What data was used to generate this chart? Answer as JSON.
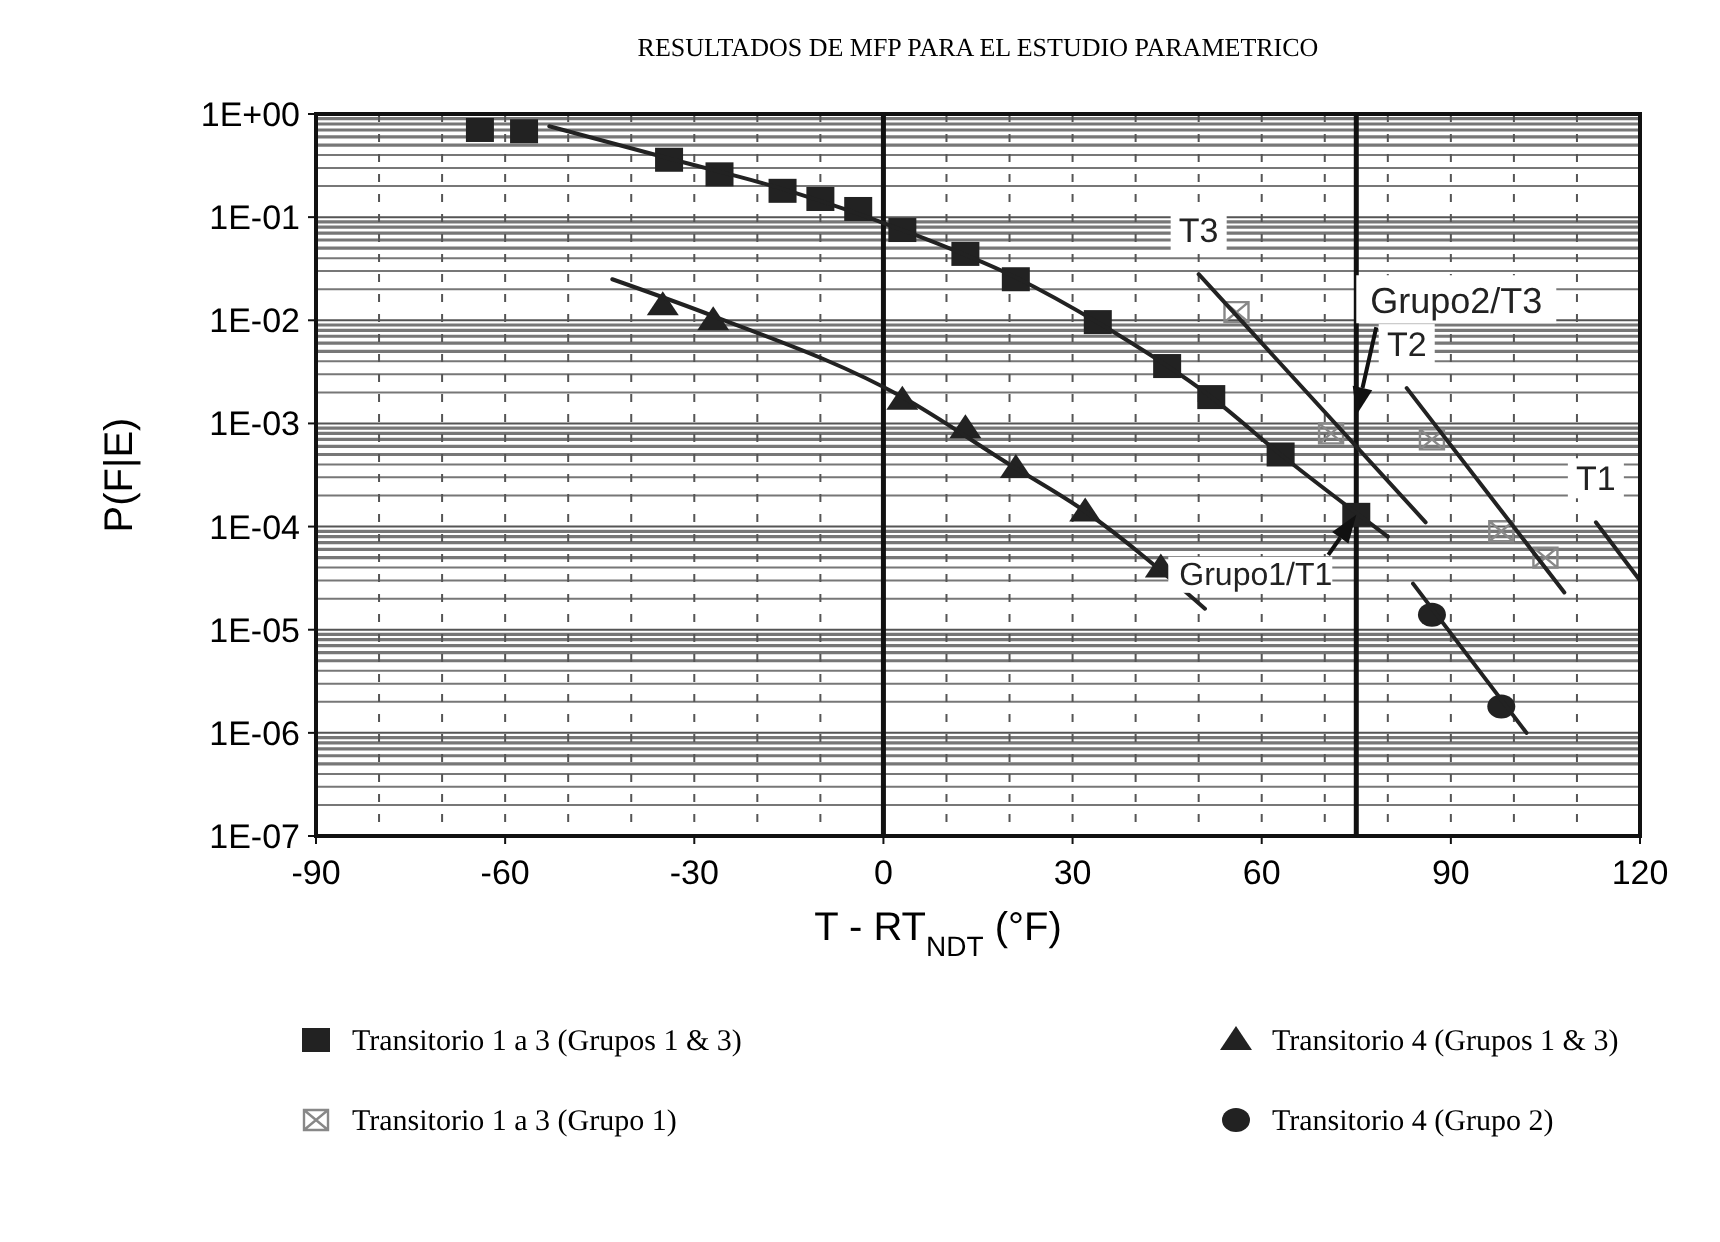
{
  "chart_data": {
    "type": "scatter",
    "title": "RESULTADOS DE MFP PARA EL ESTUDIO PARAMETRICO",
    "xlabel": "T - RT$_{NDT}$(°F)",
    "ylabel": "P(F|E)",
    "log": true,
    "grid": true,
    "legend": "bottom",
    "xlim": [
      -90,
      120
    ],
    "xticks": [
      -90,
      -60,
      -30,
      0,
      30,
      60,
      90,
      120
    ],
    "ylim": [
      1e-07,
      1
    ],
    "yticks": [
      {
        "value": 1,
        "label": "1E+00"
      },
      {
        "value": 0.1,
        "label": "1E-01"
      },
      {
        "value": 0.01,
        "label": "1E-02"
      },
      {
        "value": 0.001,
        "label": "1E-03"
      },
      {
        "value": 0.0001,
        "label": "1E-04"
      },
      {
        "value": 1e-05,
        "label": "1E-05"
      },
      {
        "value": 1e-06,
        "label": "1E-06"
      },
      {
        "value": 1e-07,
        "label": "1E-07"
      }
    ],
    "series": [
      {
        "name": "Transitorio 1 a 3 (Grupos 1 & 3)",
        "type": "scatter",
        "marker": "square",
        "color": "#222222",
        "x": [
          -64,
          -57,
          -34,
          -26,
          -16,
          -10,
          -4,
          3,
          13,
          21,
          34,
          45,
          52,
          63,
          75
        ],
        "values": [
          0.7,
          0.68,
          0.36,
          0.26,
          0.18,
          0.15,
          0.12,
          0.075,
          0.044,
          0.025,
          0.0096,
          0.0036,
          0.0018,
          0.0005,
          0.00013
        ]
      },
      {
        "name": "Transitorio 4 (Grupos 1 & 3)",
        "type": "scatter",
        "marker": "triangle",
        "color": "#222222",
        "x": [
          -35,
          -27,
          3,
          13,
          21,
          32,
          44
        ],
        "values": [
          0.014,
          0.01,
          0.0017,
          0.0009,
          0.00037,
          0.00014,
          4e-05
        ]
      },
      {
        "name": "Transitorio 1 a 3 (Grupo 1)",
        "type": "scatter",
        "marker": "cross",
        "color": "#888888",
        "x": [
          56,
          71,
          87,
          98,
          105
        ],
        "values": [
          0.012,
          0.0008,
          0.0007,
          9e-05,
          5e-05
        ]
      },
      {
        "name": "Transitorio 4 (Grupo 2)",
        "type": "scatter",
        "marker": "circle",
        "color": "#222222",
        "x": [
          87,
          98
        ],
        "values": [
          1.4e-05,
          1.8e-06
        ]
      },
      {
        "type": "line",
        "marker": "none",
        "color": "#222222",
        "x": [
          -53,
          -34,
          -15,
          3,
          21,
          34,
          52,
          63,
          80
        ],
        "values": [
          0.76,
          0.37,
          0.18,
          0.075,
          0.026,
          0.0095,
          0.0018,
          0.0005,
          8e-05
        ]
      },
      {
        "type": "line",
        "marker": "none",
        "color": "#222222",
        "x": [
          -43,
          -27,
          3,
          20,
          32,
          51
        ],
        "values": [
          0.025,
          0.011,
          0.0018,
          0.0004,
          0.00014,
          1.6e-05
        ]
      },
      {
        "type": "line",
        "marker": "none",
        "color": "#222222",
        "x": [
          84,
          102
        ],
        "values": [
          2.8e-05,
          1e-06
        ]
      },
      {
        "name": "T3",
        "type": "line",
        "marker": "none",
        "color": "#222222",
        "x": [
          50,
          86
        ],
        "values": [
          0.028,
          0.00011
        ]
      },
      {
        "name": "T2",
        "type": "line",
        "marker": "none",
        "color": "#222222",
        "x": [
          83,
          108
        ],
        "values": [
          0.0022,
          2.3e-05
        ]
      },
      {
        "name": "T1",
        "type": "line",
        "marker": "none",
        "color": "#222222",
        "x": [
          113,
          120
        ],
        "values": [
          0.00011,
          3e-05
        ]
      }
    ],
    "ref_lines": [
      {
        "axis": "x",
        "value": 0
      },
      {
        "axis": "x",
        "value": 75
      }
    ],
    "annotations": [
      {
        "text": "Grupo2/T3",
        "x": 75,
        "y": 0.0012
      },
      {
        "text": "Grupo1/T1",
        "x": 75,
        "y": 0.00013
      }
    ]
  }
}
